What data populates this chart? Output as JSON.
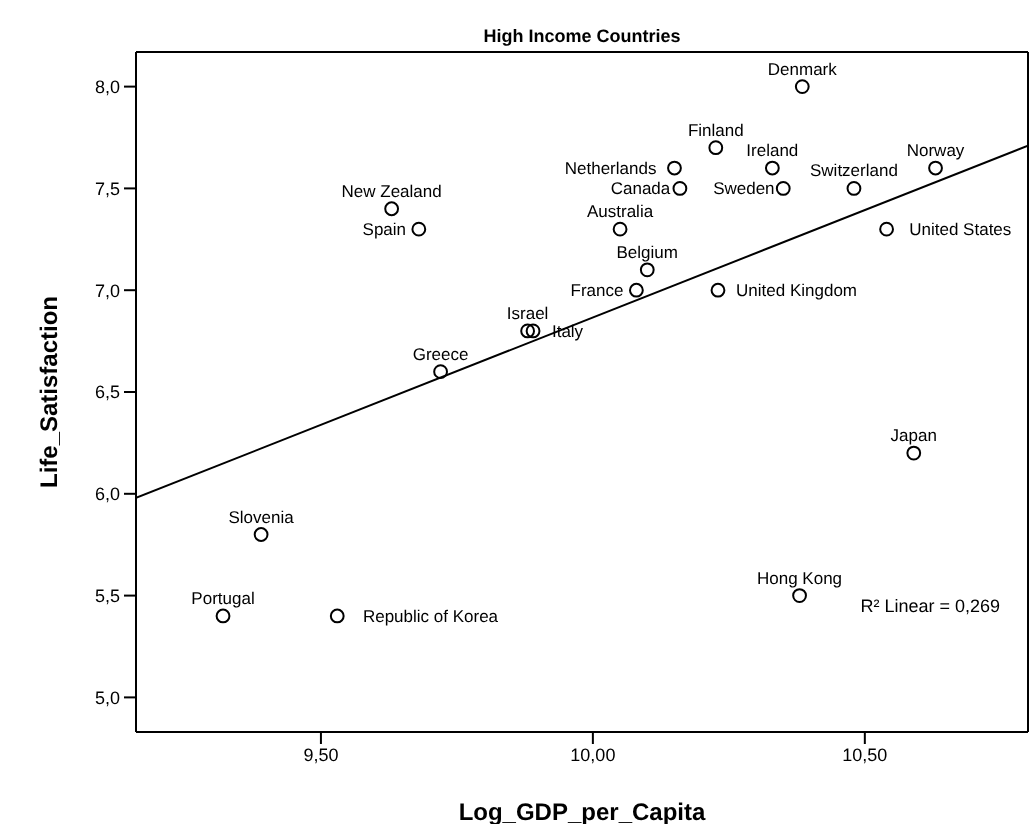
{
  "chart_data": {
    "type": "scatter",
    "title": "High Income Countries",
    "xlabel": "Log_GDP_per_Capita",
    "ylabel": "Life_Satisfaction",
    "xlim": [
      9.16,
      10.8
    ],
    "ylim": [
      4.83,
      8.17
    ],
    "xticks": [
      {
        "value": 9.5,
        "label": "9,50"
      },
      {
        "value": 10.0,
        "label": "10,00"
      },
      {
        "value": 10.5,
        "label": "10,50"
      }
    ],
    "yticks": [
      {
        "value": 5.0,
        "label": "5,0"
      },
      {
        "value": 5.5,
        "label": "5,5"
      },
      {
        "value": 6.0,
        "label": "6,0"
      },
      {
        "value": 6.5,
        "label": "6,5"
      },
      {
        "value": 7.0,
        "label": "7,0"
      },
      {
        "value": 7.5,
        "label": "7,5"
      },
      {
        "value": 8.0,
        "label": "8,0"
      }
    ],
    "marker": "circle",
    "series": [
      {
        "color": "#000000",
        "x": [
          10.385,
          10.226,
          10.15,
          10.16,
          10.33,
          10.35,
          10.48,
          10.63,
          10.54,
          10.05,
          10.1,
          10.08,
          10.23,
          9.88,
          9.89,
          9.72,
          9.63,
          9.68,
          10.59,
          10.38,
          9.39,
          9.32,
          9.53
        ],
        "values": [
          8.0,
          7.7,
          7.6,
          7.5,
          7.6,
          7.5,
          7.5,
          7.6,
          7.3,
          7.3,
          7.1,
          7.0,
          7.0,
          6.8,
          6.8,
          6.6,
          7.4,
          7.3,
          6.2,
          5.5,
          5.8,
          5.4,
          5.4
        ]
      },
      {
        "type": "line",
        "color": "#000000",
        "marker": "none",
        "x": [
          9.16,
          10.8
        ],
        "values": [
          5.98,
          7.71
        ]
      }
    ],
    "annotations": [
      {
        "text": "Denmark",
        "x": 10.385,
        "y": 8.0
      },
      {
        "text": "Finland",
        "x": 10.226,
        "y": 7.7
      },
      {
        "text": "Netherlands",
        "x": 10.15,
        "y": 7.6
      },
      {
        "text": "Canada",
        "x": 10.16,
        "y": 7.5
      },
      {
        "text": "Ireland",
        "x": 10.33,
        "y": 7.6
      },
      {
        "text": "Sweden",
        "x": 10.35,
        "y": 7.5
      },
      {
        "text": "Switzerland",
        "x": 10.48,
        "y": 7.5
      },
      {
        "text": "Norway",
        "x": 10.63,
        "y": 7.6
      },
      {
        "text": "United States",
        "x": 10.54,
        "y": 7.3
      },
      {
        "text": "Australia",
        "x": 10.05,
        "y": 7.3
      },
      {
        "text": "Belgium",
        "x": 10.1,
        "y": 7.1
      },
      {
        "text": "France",
        "x": 10.08,
        "y": 7.0
      },
      {
        "text": "United Kingdom",
        "x": 10.23,
        "y": 7.0
      },
      {
        "text": "Israel",
        "x": 9.88,
        "y": 6.8
      },
      {
        "text": "Italy",
        "x": 9.89,
        "y": 6.8
      },
      {
        "text": "Greece",
        "x": 9.72,
        "y": 6.6
      },
      {
        "text": "New Zealand",
        "x": 9.63,
        "y": 7.4
      },
      {
        "text": "Spain",
        "x": 9.68,
        "y": 7.3
      },
      {
        "text": "Japan",
        "x": 10.59,
        "y": 6.2
      },
      {
        "text": "Hong Kong",
        "x": 10.38,
        "y": 5.5
      },
      {
        "text": "Slovenia",
        "x": 9.39,
        "y": 5.8
      },
      {
        "text": "Portugal",
        "x": 9.32,
        "y": 5.4
      },
      {
        "text": "Republic of Korea",
        "x": 9.53,
        "y": 5.4
      },
      "R² Linear = 0,269"
    ]
  }
}
